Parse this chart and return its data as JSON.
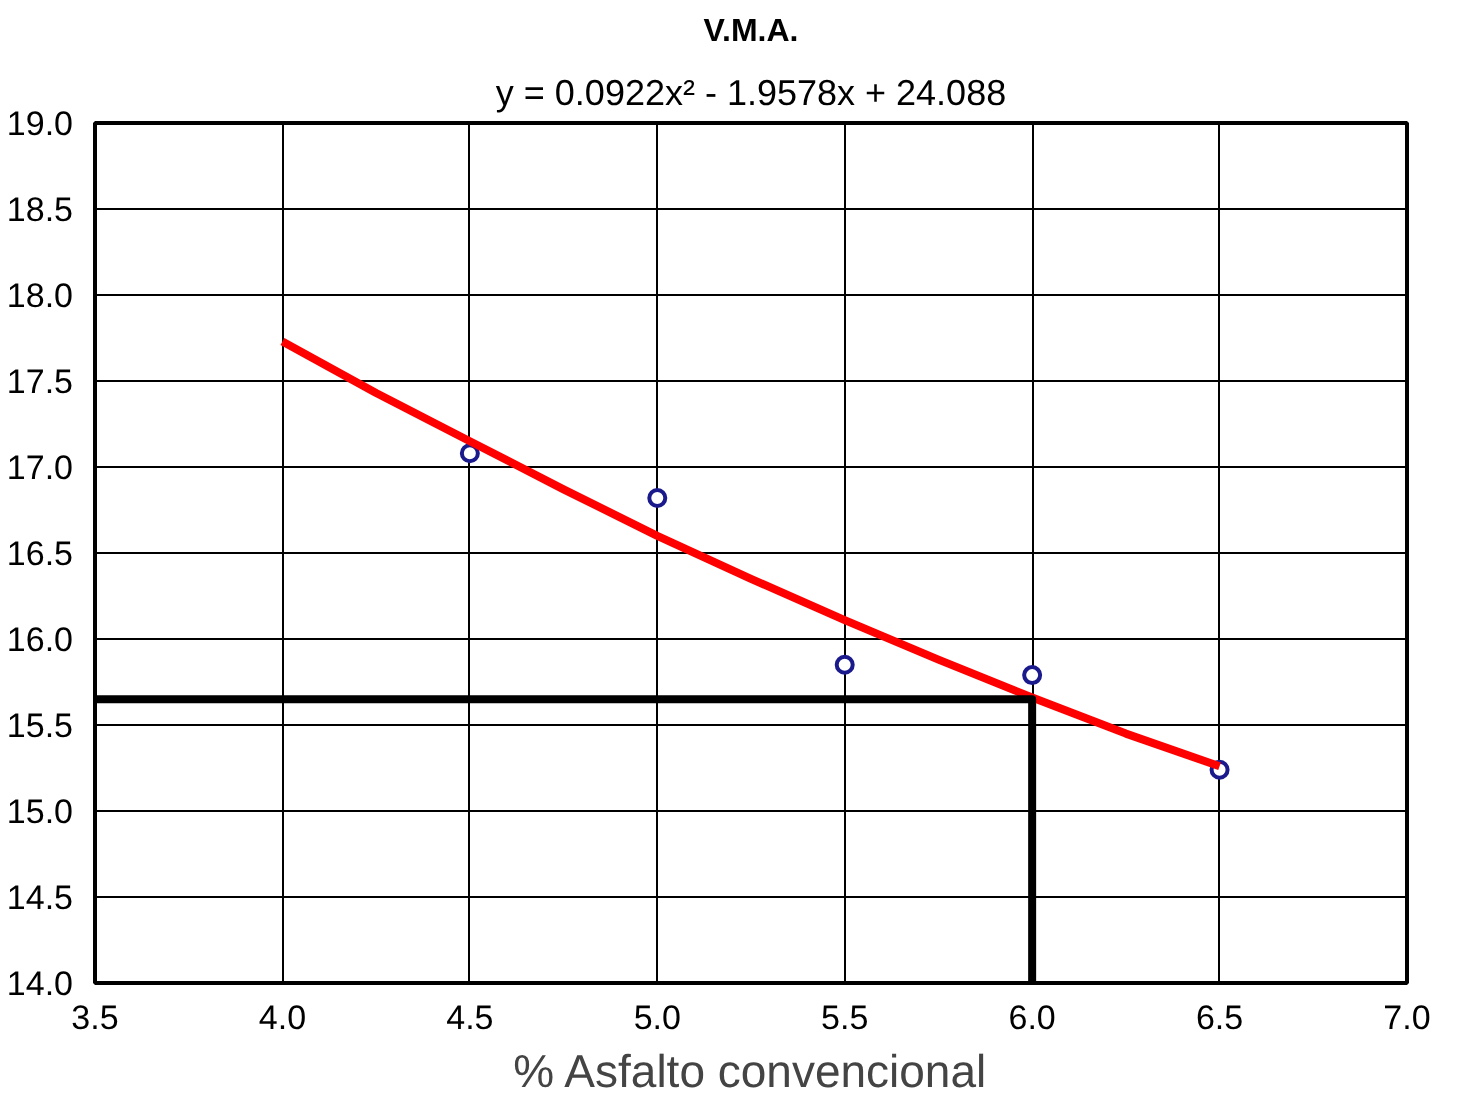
{
  "chart_data": {
    "type": "scatter",
    "title": "V.M.A.",
    "xlabel": "% Asfalto convencional",
    "annotations": [
      "y = 0.0922x² - 1.9578x + 24.088"
    ],
    "xlim": [
      3.5,
      7.0
    ],
    "ylim": [
      14.0,
      19.0
    ],
    "xticks": [
      {
        "value": 3.5,
        "label": "3.5"
      },
      {
        "value": 4.0,
        "label": "4.0"
      },
      {
        "value": 4.5,
        "label": "4.5"
      },
      {
        "value": 5.0,
        "label": "5.0"
      },
      {
        "value": 5.5,
        "label": "5.5"
      },
      {
        "value": 6.0,
        "label": "6.0"
      },
      {
        "value": 6.5,
        "label": "6.5"
      },
      {
        "value": 7.0,
        "label": "7.0"
      }
    ],
    "yticks": [
      {
        "value": 14.0,
        "label": "14.0"
      },
      {
        "value": 14.5,
        "label": "14.5"
      },
      {
        "value": 15.0,
        "label": "15.0"
      },
      {
        "value": 15.5,
        "label": "15.5"
      },
      {
        "value": 16.0,
        "label": "16.0"
      },
      {
        "value": 16.5,
        "label": "16.5"
      },
      {
        "value": 17.0,
        "label": "17.0"
      },
      {
        "value": 17.5,
        "label": "17.5"
      },
      {
        "value": 18.0,
        "label": "18.0"
      },
      {
        "value": 18.5,
        "label": "18.5"
      },
      {
        "value": 19.0,
        "label": "19.0"
      }
    ],
    "grid": true,
    "series": [
      {
        "marker": "circle",
        "color": "#1a1a8c",
        "x": [
          4.5,
          5.0,
          5.5,
          6.0,
          6.5
        ],
        "values": [
          17.08,
          16.82,
          15.85,
          15.79,
          15.24
        ]
      },
      {
        "type": "line",
        "marker": "none",
        "line_style": "solid",
        "color": "#ff0000",
        "x": [
          4.0,
          4.25,
          4.5,
          4.75,
          5.0,
          5.25,
          5.5,
          5.75,
          6.0,
          6.25,
          6.5
        ],
        "values": [
          17.73,
          17.43,
          17.15,
          16.87,
          16.6,
          16.35,
          16.11,
          15.88,
          15.66,
          15.45,
          15.26
        ]
      },
      {
        "type": "line",
        "marker": "none",
        "line_style": "solid",
        "color": "#000000",
        "x": [
          3.5,
          6.0,
          6.0
        ],
        "values": [
          15.65,
          15.65,
          14.0
        ]
      }
    ]
  }
}
